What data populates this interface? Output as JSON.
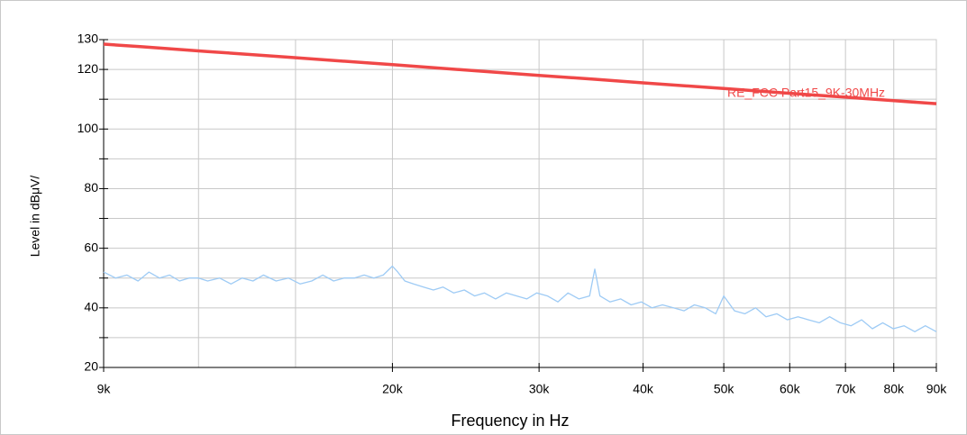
{
  "chart_data": {
    "type": "line",
    "xlabel": "Frequency in Hz",
    "ylabel": "Level in dBμV/",
    "xscale": "log",
    "grid": true,
    "xlim": [
      9000,
      90000
    ],
    "ylim": [
      20,
      130
    ],
    "xticks": [
      {
        "value": 9000,
        "label": "9k"
      },
      {
        "value": 20000,
        "label": "20k"
      },
      {
        "value": 30000,
        "label": "30k"
      },
      {
        "value": 40000,
        "label": "40k"
      },
      {
        "value": 50000,
        "label": "50k"
      },
      {
        "value": 60000,
        "label": "60k"
      },
      {
        "value": 70000,
        "label": "70k"
      },
      {
        "value": 80000,
        "label": "80k"
      },
      {
        "value": 90000,
        "label": "90k"
      }
    ],
    "xminor": [
      11700,
      15300
    ],
    "yticks": [
      20,
      40,
      60,
      80,
      100,
      120,
      130
    ],
    "yminor": [
      30,
      50,
      70,
      90,
      110
    ],
    "limit_label": "RE_FCC Part15_9K-30MHz",
    "series": [
      {
        "color": "#f04848",
        "width": 3.5,
        "x": [
          9000,
          10000,
          12000,
          15000,
          20000,
          25000,
          30000,
          35000,
          40000,
          50000,
          60000,
          70000,
          80000,
          90000
        ],
        "values": [
          128.5,
          127.6,
          126.0,
          124.1,
          121.6,
          119.6,
          118.0,
          116.7,
          115.5,
          113.6,
          112.0,
          110.7,
          109.5,
          108.5
        ]
      },
      {
        "color": "#9ecbf5",
        "width": 1.3,
        "x": [
          9000,
          9300,
          9600,
          9900,
          10200,
          10500,
          10800,
          11100,
          11400,
          11700,
          12000,
          12400,
          12800,
          13200,
          13600,
          14000,
          14500,
          15000,
          15500,
          16000,
          16500,
          17000,
          17500,
          18000,
          18500,
          19000,
          19500,
          20000,
          20300,
          20700,
          21200,
          21800,
          22400,
          23000,
          23700,
          24400,
          25100,
          25800,
          26600,
          27400,
          28200,
          29000,
          29800,
          30700,
          31600,
          32500,
          33500,
          34500,
          35000,
          35500,
          36500,
          37600,
          38700,
          39800,
          41000,
          42200,
          43500,
          44800,
          46100,
          47500,
          48900,
          50000,
          51500,
          53000,
          54600,
          56200,
          57900,
          59600,
          61400,
          63200,
          65100,
          67000,
          69000,
          71100,
          73200,
          75400,
          77600,
          79900,
          82300,
          84800,
          87300,
          90000
        ],
        "values": [
          52,
          50,
          51,
          49,
          52,
          50,
          51,
          49,
          50,
          50,
          49,
          50,
          48,
          50,
          49,
          51,
          49,
          50,
          48,
          49,
          51,
          49,
          50,
          50,
          51,
          50,
          51,
          54,
          52,
          49,
          48,
          47,
          46,
          47,
          45,
          46,
          44,
          45,
          43,
          45,
          44,
          43,
          45,
          44,
          42,
          45,
          43,
          44,
          53,
          44,
          42,
          43,
          41,
          42,
          40,
          41,
          40,
          39,
          41,
          40,
          38,
          44,
          39,
          38,
          40,
          37,
          38,
          36,
          37,
          36,
          35,
          37,
          35,
          34,
          36,
          33,
          35,
          33,
          34,
          32,
          34,
          32
        ]
      }
    ]
  }
}
